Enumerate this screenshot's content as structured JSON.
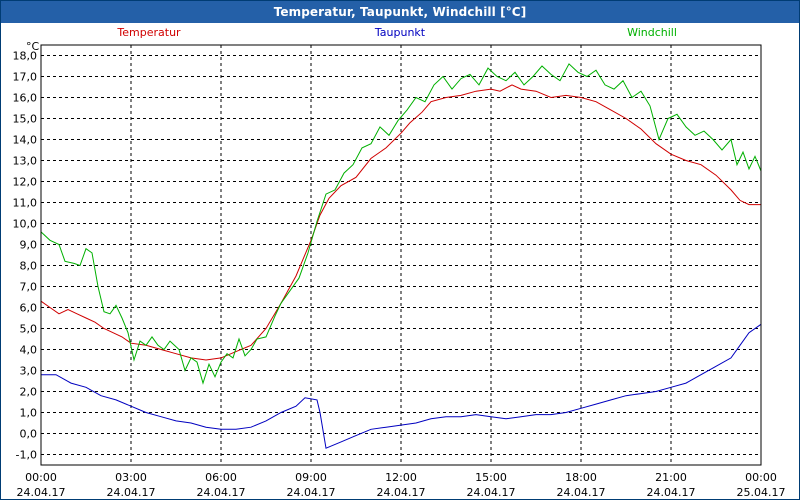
{
  "window": {
    "title": "Temperatur, Taupunkt, Windchill [°C]"
  },
  "chart_data": {
    "type": "line",
    "title": "Temperatur, Taupunkt, Windchill [°C]",
    "ylabel": "°C",
    "ylim": [
      -1.5,
      18.5
    ],
    "yticks": [
      -1.0,
      0.0,
      1.0,
      2.0,
      3.0,
      4.0,
      5.0,
      6.0,
      7.0,
      8.0,
      9.0,
      10.0,
      11.0,
      12.0,
      13.0,
      14.0,
      15.0,
      16.0,
      17.0,
      18.0
    ],
    "ytick_labels": [
      "-1,0",
      "0,0",
      "1,0",
      "2,0",
      "3,0",
      "4,0",
      "5,0",
      "6,0",
      "7,0",
      "8,0",
      "9,0",
      "10,0",
      "11,0",
      "12,0",
      "13,0",
      "14,0",
      "15,0",
      "16,0",
      "17,0",
      "18,0"
    ],
    "xlim": [
      0,
      24
    ],
    "xticks": [
      {
        "x": 0,
        "time": "00:00",
        "date": "24.04.17"
      },
      {
        "x": 3,
        "time": "03:00",
        "date": "24.04.17"
      },
      {
        "x": 6,
        "time": "06:00",
        "date": "24.04.17"
      },
      {
        "x": 9,
        "time": "09:00",
        "date": "24.04.17"
      },
      {
        "x": 12,
        "time": "12:00",
        "date": "24.04.17"
      },
      {
        "x": 15,
        "time": "15:00",
        "date": "24.04.17"
      },
      {
        "x": 18,
        "time": "18:00",
        "date": "24.04.17"
      },
      {
        "x": 21,
        "time": "21:00",
        "date": "24.04.17"
      },
      {
        "x": 24,
        "time": "00:00",
        "date": "25.04.17"
      }
    ],
    "grid": true,
    "legend": "top",
    "series": [
      {
        "name": "Temperatur",
        "color": "#d00000",
        "points": [
          [
            0,
            6.3
          ],
          [
            0.3,
            6.0
          ],
          [
            0.6,
            5.7
          ],
          [
            0.9,
            5.9
          ],
          [
            1.2,
            5.7
          ],
          [
            1.5,
            5.5
          ],
          [
            1.8,
            5.3
          ],
          [
            2.1,
            5.0
          ],
          [
            2.4,
            4.8
          ],
          [
            2.7,
            4.6
          ],
          [
            3.0,
            4.3
          ],
          [
            3.5,
            4.2
          ],
          [
            4.0,
            4.0
          ],
          [
            4.5,
            3.8
          ],
          [
            5.0,
            3.6
          ],
          [
            5.5,
            3.5
          ],
          [
            6.0,
            3.6
          ],
          [
            6.5,
            3.9
          ],
          [
            7.0,
            4.2
          ],
          [
            7.5,
            5.0
          ],
          [
            8.0,
            6.2
          ],
          [
            8.5,
            7.5
          ],
          [
            9.0,
            9.2
          ],
          [
            9.3,
            10.4
          ],
          [
            9.6,
            11.2
          ],
          [
            10.0,
            11.8
          ],
          [
            10.5,
            12.2
          ],
          [
            11.0,
            13.1
          ],
          [
            11.5,
            13.6
          ],
          [
            12.0,
            14.3
          ],
          [
            12.3,
            14.8
          ],
          [
            12.7,
            15.3
          ],
          [
            13.0,
            15.8
          ],
          [
            13.5,
            16.0
          ],
          [
            14.0,
            16.1
          ],
          [
            14.5,
            16.3
          ],
          [
            15.0,
            16.4
          ],
          [
            15.3,
            16.3
          ],
          [
            15.7,
            16.6
          ],
          [
            16.0,
            16.4
          ],
          [
            16.5,
            16.3
          ],
          [
            17.0,
            16.0
          ],
          [
            17.5,
            16.1
          ],
          [
            18.0,
            16.0
          ],
          [
            18.5,
            15.8
          ],
          [
            19.0,
            15.4
          ],
          [
            19.5,
            15.0
          ],
          [
            20.0,
            14.5
          ],
          [
            20.5,
            13.8
          ],
          [
            21.0,
            13.3
          ],
          [
            21.5,
            13.0
          ],
          [
            22.0,
            12.8
          ],
          [
            22.5,
            12.3
          ],
          [
            23.0,
            11.6
          ],
          [
            23.3,
            11.1
          ],
          [
            23.6,
            10.9
          ],
          [
            24.0,
            10.9
          ]
        ]
      },
      {
        "name": "Taupunkt",
        "color": "#0000c0",
        "points": [
          [
            0,
            2.8
          ],
          [
            0.5,
            2.8
          ],
          [
            1.0,
            2.4
          ],
          [
            1.5,
            2.2
          ],
          [
            2.0,
            1.8
          ],
          [
            2.5,
            1.6
          ],
          [
            3.0,
            1.3
          ],
          [
            3.5,
            1.0
          ],
          [
            4.0,
            0.8
          ],
          [
            4.5,
            0.6
          ],
          [
            5.0,
            0.5
          ],
          [
            5.5,
            0.3
          ],
          [
            6.0,
            0.2
          ],
          [
            6.5,
            0.2
          ],
          [
            7.0,
            0.3
          ],
          [
            7.5,
            0.6
          ],
          [
            8.0,
            1.0
          ],
          [
            8.5,
            1.3
          ],
          [
            8.8,
            1.7
          ],
          [
            9.2,
            1.6
          ],
          [
            9.3,
            1.0
          ],
          [
            9.5,
            -0.7
          ],
          [
            10.0,
            -0.4
          ],
          [
            10.5,
            -0.1
          ],
          [
            11.0,
            0.2
          ],
          [
            11.5,
            0.3
          ],
          [
            12.0,
            0.4
          ],
          [
            12.5,
            0.5
          ],
          [
            13.0,
            0.7
          ],
          [
            13.5,
            0.8
          ],
          [
            14.0,
            0.8
          ],
          [
            14.5,
            0.9
          ],
          [
            15.0,
            0.8
          ],
          [
            15.5,
            0.7
          ],
          [
            16.0,
            0.8
          ],
          [
            16.5,
            0.9
          ],
          [
            17.0,
            0.9
          ],
          [
            17.5,
            1.0
          ],
          [
            18.0,
            1.2
          ],
          [
            18.5,
            1.4
          ],
          [
            19.0,
            1.6
          ],
          [
            19.5,
            1.8
          ],
          [
            20.0,
            1.9
          ],
          [
            20.5,
            2.0
          ],
          [
            21.0,
            2.2
          ],
          [
            21.5,
            2.4
          ],
          [
            22.0,
            2.8
          ],
          [
            22.5,
            3.2
          ],
          [
            23.0,
            3.6
          ],
          [
            23.3,
            4.2
          ],
          [
            23.6,
            4.8
          ],
          [
            24.0,
            5.2
          ]
        ]
      },
      {
        "name": "Windchill",
        "color": "#00b000",
        "points": [
          [
            0,
            9.6
          ],
          [
            0.3,
            9.2
          ],
          [
            0.6,
            9.0
          ],
          [
            0.8,
            8.2
          ],
          [
            1.1,
            8.1
          ],
          [
            1.3,
            8.0
          ],
          [
            1.5,
            8.8
          ],
          [
            1.7,
            8.6
          ],
          [
            1.9,
            7.0
          ],
          [
            2.1,
            5.8
          ],
          [
            2.3,
            5.7
          ],
          [
            2.5,
            6.1
          ],
          [
            2.7,
            5.5
          ],
          [
            2.9,
            4.8
          ],
          [
            3.1,
            3.5
          ],
          [
            3.3,
            4.4
          ],
          [
            3.5,
            4.2
          ],
          [
            3.7,
            4.6
          ],
          [
            3.9,
            4.2
          ],
          [
            4.1,
            4.0
          ],
          [
            4.3,
            4.4
          ],
          [
            4.6,
            4.0
          ],
          [
            4.8,
            3.0
          ],
          [
            5.0,
            3.6
          ],
          [
            5.2,
            3.4
          ],
          [
            5.4,
            2.4
          ],
          [
            5.6,
            3.3
          ],
          [
            5.8,
            2.7
          ],
          [
            6.0,
            3.4
          ],
          [
            6.2,
            3.8
          ],
          [
            6.4,
            3.6
          ],
          [
            6.6,
            4.5
          ],
          [
            6.8,
            3.7
          ],
          [
            7.0,
            4.0
          ],
          [
            7.2,
            4.5
          ],
          [
            7.5,
            4.6
          ],
          [
            7.8,
            5.6
          ],
          [
            8.0,
            6.2
          ],
          [
            8.3,
            6.8
          ],
          [
            8.6,
            7.4
          ],
          [
            8.9,
            8.6
          ],
          [
            9.2,
            10.1
          ],
          [
            9.5,
            11.4
          ],
          [
            9.8,
            11.6
          ],
          [
            10.1,
            12.4
          ],
          [
            10.4,
            12.8
          ],
          [
            10.7,
            13.6
          ],
          [
            11.0,
            13.8
          ],
          [
            11.3,
            14.6
          ],
          [
            11.6,
            14.2
          ],
          [
            11.9,
            14.9
          ],
          [
            12.2,
            15.4
          ],
          [
            12.5,
            16.0
          ],
          [
            12.8,
            15.8
          ],
          [
            13.1,
            16.6
          ],
          [
            13.4,
            17.0
          ],
          [
            13.7,
            16.4
          ],
          [
            14.0,
            16.9
          ],
          [
            14.3,
            17.1
          ],
          [
            14.6,
            16.6
          ],
          [
            14.9,
            17.4
          ],
          [
            15.2,
            17.0
          ],
          [
            15.5,
            16.8
          ],
          [
            15.8,
            17.2
          ],
          [
            16.1,
            16.6
          ],
          [
            16.4,
            17.0
          ],
          [
            16.7,
            17.5
          ],
          [
            17.0,
            17.1
          ],
          [
            17.3,
            16.8
          ],
          [
            17.6,
            17.6
          ],
          [
            17.9,
            17.2
          ],
          [
            18.2,
            17.0
          ],
          [
            18.5,
            17.3
          ],
          [
            18.8,
            16.6
          ],
          [
            19.1,
            16.4
          ],
          [
            19.4,
            16.8
          ],
          [
            19.7,
            16.0
          ],
          [
            20.0,
            16.3
          ],
          [
            20.3,
            15.6
          ],
          [
            20.6,
            14.0
          ],
          [
            20.9,
            15.0
          ],
          [
            21.2,
            15.2
          ],
          [
            21.5,
            14.6
          ],
          [
            21.8,
            14.2
          ],
          [
            22.1,
            14.4
          ],
          [
            22.4,
            14.0
          ],
          [
            22.7,
            13.5
          ],
          [
            23.0,
            14.0
          ],
          [
            23.2,
            12.8
          ],
          [
            23.4,
            13.4
          ],
          [
            23.6,
            12.6
          ],
          [
            23.8,
            13.2
          ],
          [
            24.0,
            12.5
          ]
        ]
      }
    ]
  }
}
